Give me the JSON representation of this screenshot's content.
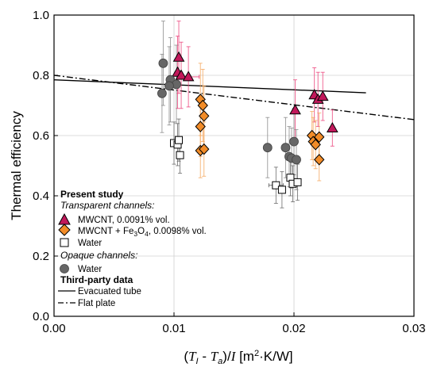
{
  "chart_data": {
    "type": "scatter",
    "xlabel": {
      "pre": "(",
      "t1": "T",
      "t1sub": "I",
      "minus": " - ",
      "t2": "T",
      "t2sub": "a",
      "post": ")/",
      "i": "I",
      "unit_open": " [m",
      "sup": "2",
      "unit_close": "·K/W]"
    },
    "ylabel": "Thermal efficiency",
    "xlim": [
      0,
      0.03
    ],
    "ylim": [
      0,
      1.0
    ],
    "xticks": [
      "0.00",
      "0.01",
      "0.02",
      "0.03"
    ],
    "xtick_values": [
      0,
      0.01,
      0.02,
      0.03
    ],
    "yticks": [
      "0.0",
      "0.2",
      "0.4",
      "0.6",
      "0.8",
      "1.0"
    ],
    "ytick_values": [
      0,
      0.2,
      0.4,
      0.6,
      0.8,
      1.0
    ],
    "grid": true,
    "legend_placement": "bottom-left",
    "legend": {
      "present_study": "Present study",
      "transparent": "Transparent channels:",
      "mwcnt": "MWCNT, 0.0091% vol.",
      "fe_pre": "MWCNT + Fe",
      "fe_sub1": "3",
      "fe_mid": "O",
      "fe_sub2": "4",
      "fe_post": ", 0.0098% vol.",
      "water": "Water",
      "opaque": "Opaque channels:",
      "water_opaque": "Water",
      "third_party": "Third-party data",
      "evacuated": "Evacuated tube",
      "flat": "Flat plate"
    },
    "series": [
      {
        "name": "MWCNT, 0.0091% vol.",
        "marker": "triangle",
        "color": "#c2185b",
        "errcolor": "#ec407a",
        "points": [
          {
            "x": 0.0104,
            "y": 0.86,
            "yerr": 0.12,
            "xerr": 0.0
          },
          {
            "x": 0.0103,
            "y": 0.81,
            "yerr": 0.12,
            "xerr": 0.0
          },
          {
            "x": 0.0106,
            "y": 0.8,
            "yerr": 0.11,
            "xerr": 0.0
          },
          {
            "x": 0.0112,
            "y": 0.795,
            "yerr": 0.1,
            "xerr": 0.0009
          },
          {
            "x": 0.0201,
            "y": 0.685,
            "yerr": 0.1,
            "xerr": 0.0
          },
          {
            "x": 0.0217,
            "y": 0.735,
            "yerr": 0.09,
            "xerr": 0.0
          },
          {
            "x": 0.022,
            "y": 0.72,
            "yerr": 0.09,
            "xerr": 0.0
          },
          {
            "x": 0.0224,
            "y": 0.73,
            "yerr": 0.08,
            "xerr": 0.0
          },
          {
            "x": 0.0232,
            "y": 0.625,
            "yerr": 0.06,
            "xerr": 0.0
          }
        ]
      },
      {
        "name": "MWCNT + Fe3O4, 0.0098% vol.",
        "marker": "diamond",
        "color": "#f28c28",
        "errcolor": "#f5a65b",
        "points": [
          {
            "x": 0.0122,
            "y": 0.72,
            "yerr": 0.12,
            "xerr": 0.0
          },
          {
            "x": 0.0124,
            "y": 0.7,
            "yerr": 0.12,
            "xerr": 0.0
          },
          {
            "x": 0.0122,
            "y": 0.63,
            "yerr": 0.1,
            "xerr": 0.0
          },
          {
            "x": 0.0125,
            "y": 0.665,
            "yerr": 0.1,
            "xerr": 0.0
          },
          {
            "x": 0.0122,
            "y": 0.55,
            "yerr": 0.09,
            "xerr": 0.0
          },
          {
            "x": 0.0125,
            "y": 0.555,
            "yerr": 0.09,
            "xerr": 0.0
          },
          {
            "x": 0.0215,
            "y": 0.6,
            "yerr": 0.08,
            "xerr": 0.0
          },
          {
            "x": 0.0216,
            "y": 0.58,
            "yerr": 0.08,
            "xerr": 0.0
          },
          {
            "x": 0.0218,
            "y": 0.57,
            "yerr": 0.08,
            "xerr": 0.0
          },
          {
            "x": 0.0221,
            "y": 0.595,
            "yerr": 0.08,
            "xerr": 0.0
          },
          {
            "x": 0.0221,
            "y": 0.52,
            "yerr": 0.07,
            "xerr": 0.0
          }
        ]
      },
      {
        "name": "Water (transparent)",
        "marker": "square",
        "color": "#ffffff",
        "errcolor": "#666666",
        "points": [
          {
            "x": 0.01,
            "y": 0.575,
            "yerr": 0.07,
            "xerr": 0.0
          },
          {
            "x": 0.0103,
            "y": 0.57,
            "yerr": 0.07,
            "xerr": 0.0
          },
          {
            "x": 0.0104,
            "y": 0.585,
            "yerr": 0.07,
            "xerr": 0.0
          },
          {
            "x": 0.0105,
            "y": 0.535,
            "yerr": 0.06,
            "xerr": 0.0
          },
          {
            "x": 0.0185,
            "y": 0.435,
            "yerr": 0.06,
            "xerr": 0.0006
          },
          {
            "x": 0.019,
            "y": 0.42,
            "yerr": 0.06,
            "xerr": 0.0
          },
          {
            "x": 0.0197,
            "y": 0.46,
            "yerr": 0.06,
            "xerr": 0.0
          },
          {
            "x": 0.0199,
            "y": 0.44,
            "yerr": 0.06,
            "xerr": 0.0
          },
          {
            "x": 0.0203,
            "y": 0.445,
            "yerr": 0.06,
            "xerr": 0.0
          }
        ]
      },
      {
        "name": "Water (opaque)",
        "marker": "circle",
        "color": "#666666",
        "errcolor": "#888888",
        "points": [
          {
            "x": 0.0091,
            "y": 0.84,
            "yerr": 0.14,
            "xerr": 0.0
          },
          {
            "x": 0.0097,
            "y": 0.785,
            "yerr": 0.14,
            "xerr": 0.0
          },
          {
            "x": 0.0102,
            "y": 0.77,
            "yerr": 0.13,
            "xerr": 0.0
          },
          {
            "x": 0.0096,
            "y": 0.765,
            "yerr": 0.13,
            "xerr": 0.0
          },
          {
            "x": 0.009,
            "y": 0.74,
            "yerr": 0.13,
            "xerr": 0.0
          },
          {
            "x": 0.0178,
            "y": 0.56,
            "yerr": 0.1,
            "xerr": 0.0
          },
          {
            "x": 0.0193,
            "y": 0.56,
            "yerr": 0.1,
            "xerr": 0.0
          },
          {
            "x": 0.0196,
            "y": 0.53,
            "yerr": 0.1,
            "xerr": 0.0
          },
          {
            "x": 0.0198,
            "y": 0.525,
            "yerr": 0.1,
            "xerr": 0.0
          },
          {
            "x": 0.02,
            "y": 0.58,
            "yerr": 0.11,
            "xerr": 0.0
          },
          {
            "x": 0.0202,
            "y": 0.52,
            "yerr": 0.1,
            "xerr": 0.0
          }
        ]
      },
      {
        "name": "Evacuated tube",
        "type": "line",
        "style": "solid",
        "x": [
          0,
          0.026
        ],
        "y": [
          0.785,
          0.742
        ]
      },
      {
        "name": "Flat plate",
        "type": "line",
        "style": "dashdot",
        "x": [
          0,
          0.03
        ],
        "y": [
          0.8,
          0.653
        ]
      }
    ]
  }
}
